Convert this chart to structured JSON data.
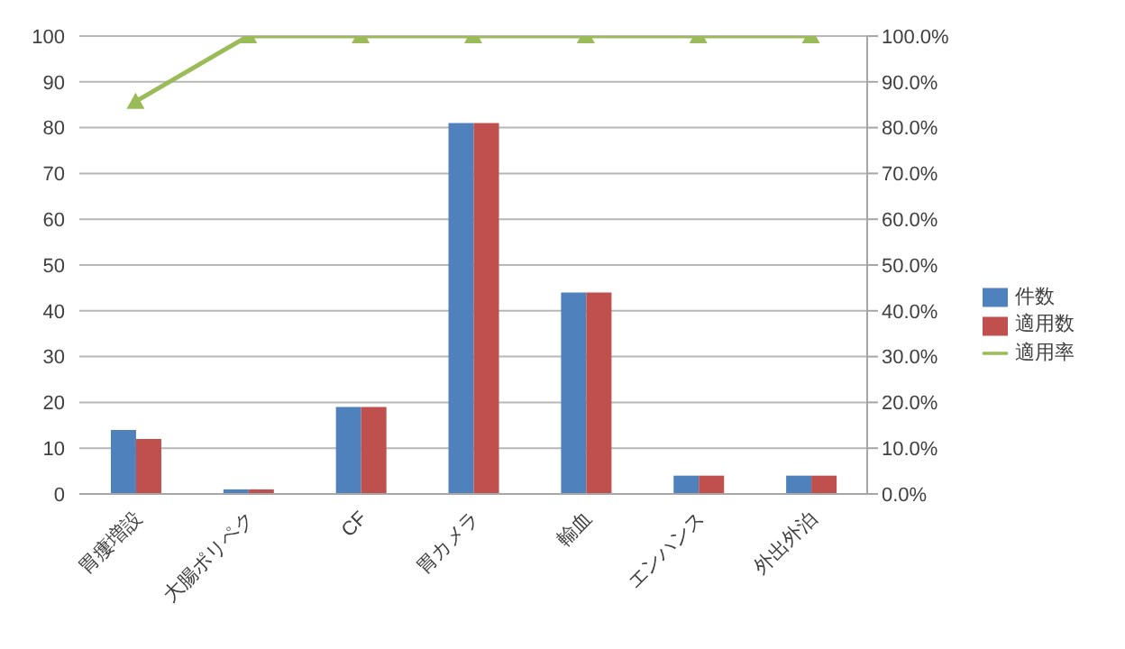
{
  "chart_data": {
    "type": "bar",
    "categories": [
      "胃瘻増設",
      "大腸ポリペク",
      "CF",
      "胃カメラ",
      "輸血",
      "エンハンス",
      "外出外泊"
    ],
    "series": [
      {
        "name": "件数",
        "color": "#4f81bd",
        "values": [
          14,
          1,
          19,
          81,
          44,
          4,
          4
        ]
      },
      {
        "name": "適用数",
        "color": "#c0504d",
        "values": [
          12,
          1,
          19,
          81,
          44,
          4,
          4
        ]
      },
      {
        "name": "適用率",
        "type": "line",
        "axis": "y2",
        "color": "#9bbb59",
        "values": [
          85.7,
          100,
          100,
          100,
          100,
          100,
          100
        ],
        "marker": "triangle"
      }
    ],
    "ylim": [
      0,
      100
    ],
    "yticks": [
      0,
      10,
      20,
      30,
      40,
      50,
      60,
      70,
      80,
      90,
      100
    ],
    "y2lim": [
      0,
      100
    ],
    "y2ticks": [
      {
        "value": 0,
        "label": "0.0%"
      },
      {
        "value": 10,
        "label": "10.0%"
      },
      {
        "value": 20,
        "label": "20.0%"
      },
      {
        "value": 30,
        "label": "30.0%"
      },
      {
        "value": 40,
        "label": "40.0%"
      },
      {
        "value": 50,
        "label": "50.0%"
      },
      {
        "value": 60,
        "label": "60.0%"
      },
      {
        "value": 70,
        "label": "70.0%"
      },
      {
        "value": 80,
        "label": "80.0%"
      },
      {
        "value": 90,
        "label": "90.0%"
      },
      {
        "value": 100,
        "label": "100.0%"
      }
    ],
    "grid": "y",
    "legend": "right"
  }
}
